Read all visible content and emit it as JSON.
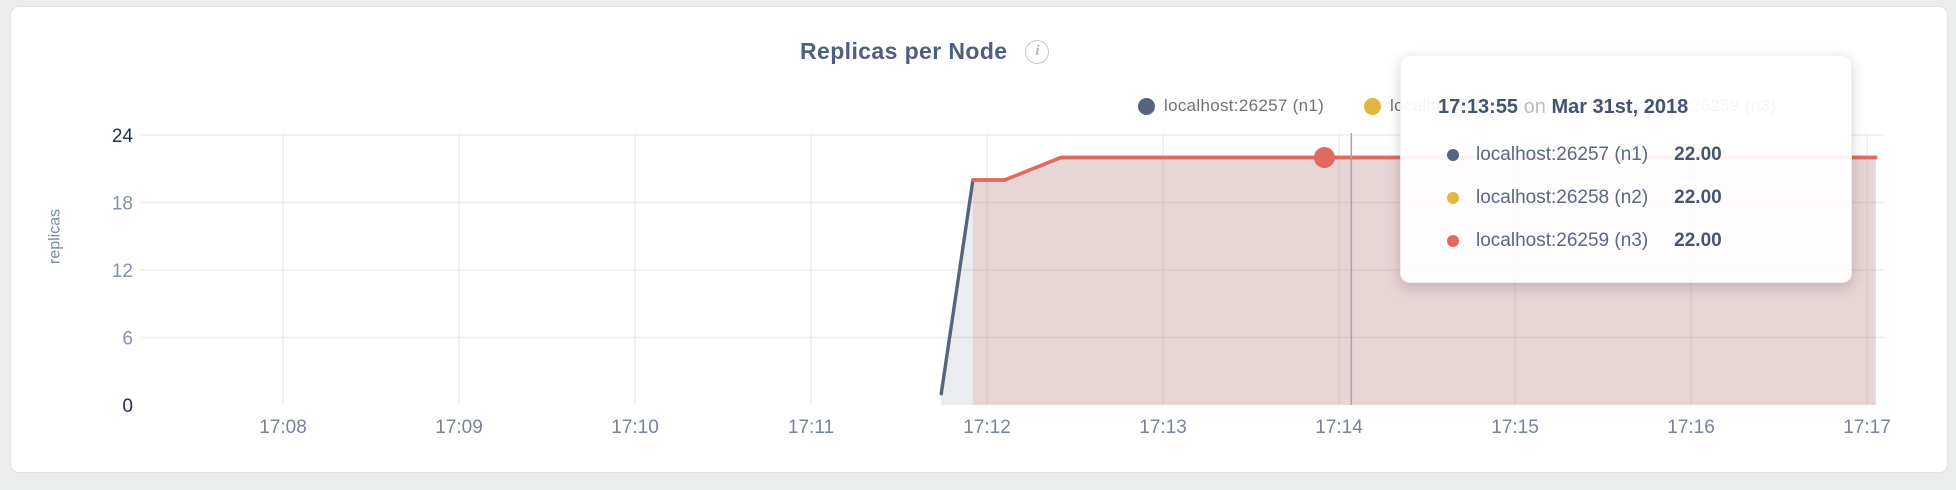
{
  "card": {
    "info_icon": "i"
  },
  "tooltip": {
    "time": "17:13:55",
    "connector": "on",
    "date": "Mar 31st, 2018",
    "rows": [
      {
        "label": "localhost:26257 (n1)",
        "value": "22.00"
      },
      {
        "label": "localhost:26258 (n2)",
        "value": "22.00"
      },
      {
        "label": "localhost:26259 (n3)",
        "value": "22.00"
      }
    ]
  },
  "chart_data": {
    "type": "area",
    "title": "Replicas per Node",
    "ylabel": "replicas",
    "xlabel": "",
    "ylim": [
      0,
      24
    ],
    "y_ticks": [
      0,
      6,
      12,
      18,
      24
    ],
    "x_tick_labels": [
      "17:08",
      "17:09",
      "17:10",
      "17:11",
      "17:12",
      "17:13",
      "17:14",
      "17:15",
      "17:16",
      "17:17"
    ],
    "x_ticks_minutes": [
      8,
      9,
      10,
      11,
      12,
      13,
      14,
      15,
      16,
      17
    ],
    "grid": true,
    "legend_position": "top-right",
    "series": [
      {
        "name": "localhost:26257 (n1)",
        "color": "#56647f",
        "fill": "rgba(90,107,135,0.13)",
        "points_minutes_value": [
          [
            11.74,
            1
          ],
          [
            11.92,
            20
          ],
          [
            12.1,
            20
          ],
          [
            12.42,
            22
          ],
          [
            17.05,
            22
          ]
        ]
      },
      {
        "name": "localhost:26258 (n2)",
        "color": "#e0b63e",
        "fill": "rgba(224,182,62,0)",
        "points_minutes_value": [
          [
            11.92,
            20
          ],
          [
            12.1,
            20
          ],
          [
            12.42,
            22
          ],
          [
            17.05,
            22
          ]
        ]
      },
      {
        "name": "localhost:26259 (n3)",
        "color": "#e2695e",
        "fill": "rgba(224,104,92,0.18)",
        "points_minutes_value": [
          [
            11.92,
            20
          ],
          [
            12.1,
            20
          ],
          [
            12.42,
            22
          ],
          [
            17.05,
            22
          ]
        ]
      }
    ],
    "highlight": {
      "series_index": 2,
      "x_minutes": 13.917,
      "value": 22,
      "time_label": "17:13:55"
    },
    "crosshair_x_minutes": 14.07,
    "colors": {
      "grid": "#ededed",
      "crosshair": "#a6a6a6",
      "y_tick_major": "#212f4e",
      "y_tick_minor": "#8593ac",
      "x_tick": "#76839d"
    }
  }
}
